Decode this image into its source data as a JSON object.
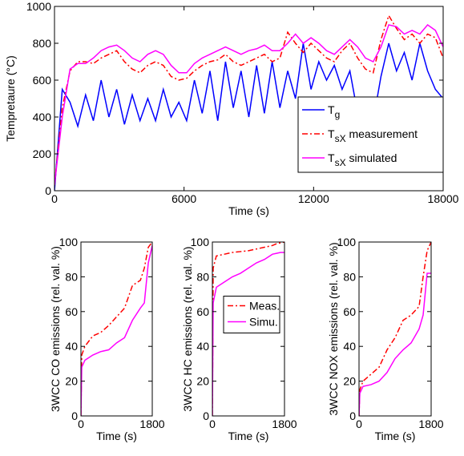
{
  "chart_data": [
    {
      "type": "line",
      "xlabel": "Time (s)",
      "ylabel": "Tempretaure (°C)",
      "xlim": [
        0,
        18000
      ],
      "xticks": [
        0,
        6000,
        12000,
        18000
      ],
      "ylim": [
        0,
        1000
      ],
      "yticks": [
        0,
        200,
        400,
        600,
        800,
        1000
      ],
      "legend": "lower right",
      "x": [
        0,
        360,
        720,
        1080,
        1440,
        1800,
        2160,
        2520,
        2880,
        3240,
        3600,
        3960,
        4320,
        4680,
        5040,
        5400,
        5760,
        6120,
        6480,
        6840,
        7200,
        7560,
        7920,
        8280,
        8640,
        9000,
        9360,
        9720,
        10080,
        10440,
        10800,
        11160,
        11520,
        11880,
        12240,
        12600,
        12960,
        13320,
        13680,
        14040,
        14400,
        14760,
        15120,
        15480,
        15840,
        16200,
        16560,
        16920,
        17280,
        17640,
        18000
      ],
      "series": [
        {
          "name": "Tg",
          "color": "#0000ff",
          "style": "solid",
          "values": [
            0,
            550,
            480,
            350,
            520,
            380,
            600,
            400,
            550,
            360,
            520,
            380,
            500,
            380,
            550,
            400,
            480,
            380,
            600,
            420,
            650,
            380,
            700,
            450,
            650,
            400,
            680,
            420,
            700,
            450,
            650,
            500,
            800,
            550,
            700,
            600,
            680,
            550,
            650,
            420,
            480,
            380,
            620,
            800,
            650,
            750,
            600,
            800,
            650,
            550,
            500
          ]
        },
        {
          "name": "TsX measurement",
          "color": "#ff0000",
          "style": "dashdot",
          "values": [
            30,
            450,
            650,
            700,
            700,
            690,
            720,
            740,
            760,
            700,
            660,
            640,
            680,
            700,
            680,
            620,
            600,
            610,
            650,
            680,
            700,
            710,
            740,
            700,
            680,
            700,
            720,
            740,
            700,
            720,
            860,
            800,
            750,
            800,
            760,
            720,
            700,
            760,
            800,
            720,
            660,
            640,
            820,
            950,
            880,
            820,
            850,
            800,
            850,
            830,
            720
          ]
        },
        {
          "name": "TsX simulated",
          "color": "#ff00ff",
          "style": "solid",
          "values": [
            30,
            400,
            660,
            690,
            690,
            720,
            760,
            780,
            790,
            760,
            720,
            700,
            740,
            760,
            740,
            680,
            640,
            640,
            690,
            720,
            740,
            760,
            780,
            760,
            740,
            760,
            770,
            790,
            760,
            760,
            800,
            850,
            800,
            830,
            800,
            760,
            740,
            780,
            820,
            780,
            720,
            700,
            780,
            900,
            890,
            850,
            870,
            850,
            900,
            870,
            780
          ]
        }
      ]
    },
    {
      "type": "line",
      "xlabel": "Time (s)",
      "ylabel": "3WCC CO emissions (rel. val. %)",
      "xlim": [
        0,
        1800
      ],
      "xticks": [
        0,
        1800
      ],
      "ylim": [
        0,
        100
      ],
      "yticks": [
        0,
        20,
        40,
        60,
        80,
        100
      ],
      "x": [
        0,
        20,
        100,
        300,
        500,
        700,
        900,
        1100,
        1300,
        1500,
        1600,
        1700,
        1800
      ],
      "series": [
        {
          "color": "#ff0000",
          "style": "dashdot",
          "values": [
            0,
            35,
            40,
            46,
            48,
            52,
            57,
            62,
            75,
            78,
            85,
            97,
            100
          ]
        },
        {
          "color": "#ff00ff",
          "style": "solid",
          "values": [
            0,
            28,
            32,
            35,
            37,
            38,
            42,
            45,
            55,
            62,
            65,
            88,
            98
          ]
        }
      ]
    },
    {
      "type": "line",
      "xlabel": "Time (s)",
      "ylabel": "3WCC HC emissions (rel. val. %)",
      "xlim": [
        0,
        1800
      ],
      "xticks": [
        0,
        1800
      ],
      "ylim": [
        0,
        100
      ],
      "yticks": [
        0,
        20,
        40,
        60,
        80,
        100
      ],
      "legend": "center",
      "x": [
        0,
        20,
        100,
        300,
        500,
        700,
        900,
        1100,
        1300,
        1500,
        1600,
        1700,
        1800
      ],
      "series": [
        {
          "name": "Meas.",
          "color": "#ff0000",
          "style": "dashdot",
          "values": [
            0,
            85,
            92,
            93,
            94,
            94.5,
            95,
            96,
            97,
            98,
            99,
            99.5,
            100
          ]
        },
        {
          "name": "Simu.",
          "color": "#ff00ff",
          "style": "solid",
          "values": [
            0,
            65,
            74,
            77,
            80,
            82,
            85,
            88,
            90,
            93,
            93.5,
            94,
            94
          ]
        }
      ]
    },
    {
      "type": "line",
      "xlabel": "Time (s)",
      "ylabel": "3WCC NOX emissions (rel. val. %)",
      "xlim": [
        0,
        1800
      ],
      "xticks": [
        0,
        1800
      ],
      "ylim": [
        0,
        100
      ],
      "yticks": [
        0,
        20,
        40,
        60,
        80,
        100
      ],
      "x": [
        0,
        20,
        100,
        300,
        500,
        700,
        900,
        1100,
        1300,
        1500,
        1600,
        1700,
        1800
      ],
      "series": [
        {
          "color": "#ff0000",
          "style": "dashdot",
          "values": [
            0,
            15,
            20,
            24,
            28,
            38,
            45,
            55,
            58,
            63,
            80,
            95,
            100
          ]
        },
        {
          "color": "#ff00ff",
          "style": "solid",
          "values": [
            0,
            13,
            17,
            18,
            20,
            25,
            33,
            38,
            42,
            50,
            58,
            82,
            82
          ]
        }
      ]
    }
  ]
}
